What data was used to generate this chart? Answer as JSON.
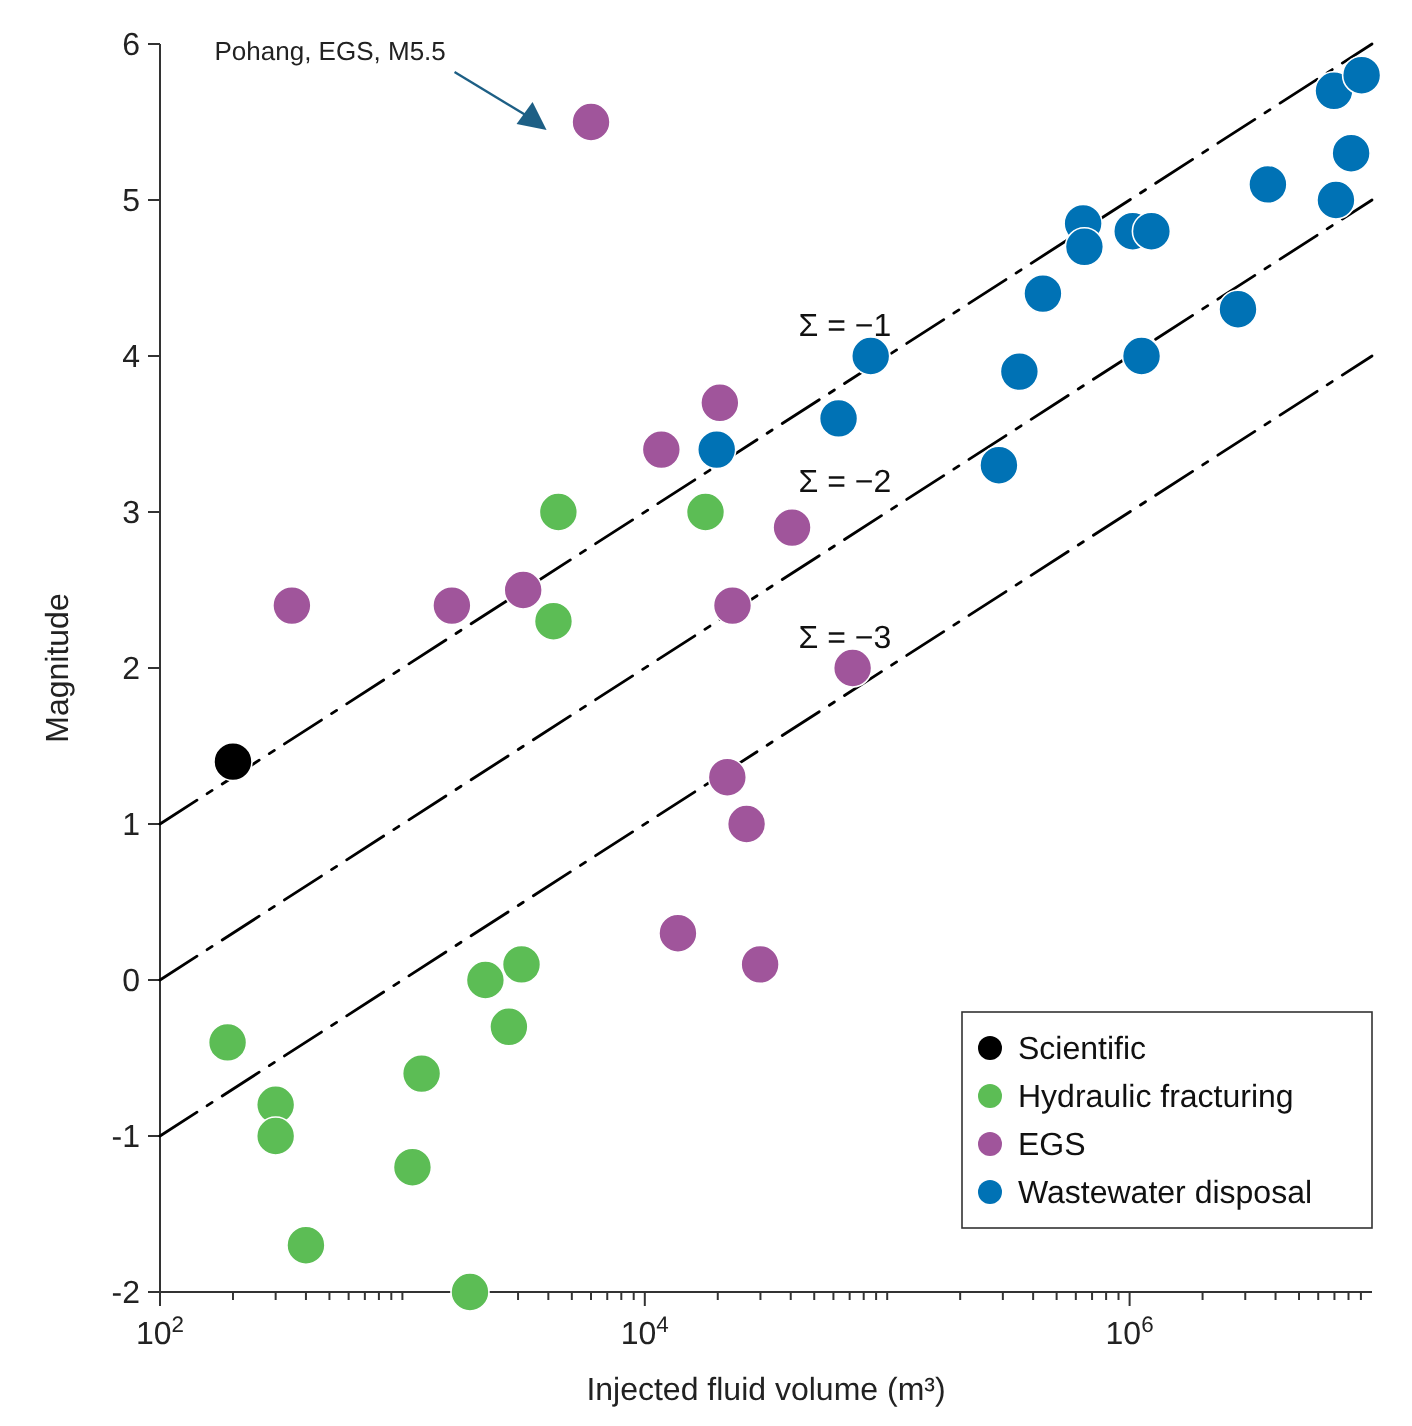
{
  "chart_data": {
    "type": "scatter",
    "xlabel": "Injected fluid volume (m³)",
    "ylabel": "Magnitude",
    "log": "x",
    "xlim": [
      100,
      10000000
    ],
    "ylim": [
      -2,
      6
    ],
    "xticks": [
      {
        "value": 100,
        "label": "10$^{2}$"
      },
      {
        "value": 200,
        "label": null
      },
      {
        "value": 300,
        "label": null
      },
      {
        "value": 400,
        "label": null
      },
      {
        "value": 500,
        "label": null
      },
      {
        "value": 600,
        "label": null
      },
      {
        "value": 700,
        "label": null
      },
      {
        "value": 800,
        "label": null
      },
      {
        "value": 900,
        "label": null
      },
      {
        "value": 1000,
        "label": null
      },
      {
        "value": 2000,
        "label": null
      },
      {
        "value": 3000,
        "label": null
      },
      {
        "value": 4000,
        "label": null
      },
      {
        "value": 5000,
        "label": null
      },
      {
        "value": 6000,
        "label": null
      },
      {
        "value": 7000,
        "label": null
      },
      {
        "value": 8000,
        "label": null
      },
      {
        "value": 9000,
        "label": null
      },
      {
        "value": 10000,
        "label": "10$^{4}$"
      },
      {
        "value": 20000,
        "label": null
      },
      {
        "value": 30000,
        "label": null
      },
      {
        "value": 40000,
        "label": null
      },
      {
        "value": 50000,
        "label": null
      },
      {
        "value": 60000,
        "label": null
      },
      {
        "value": 70000,
        "label": null
      },
      {
        "value": 80000,
        "label": null
      },
      {
        "value": 90000,
        "label": null
      },
      {
        "value": 100000,
        "label": null
      },
      {
        "value": 200000,
        "label": null
      },
      {
        "value": 300000,
        "label": null
      },
      {
        "value": 400000,
        "label": null
      },
      {
        "value": 500000,
        "label": null
      },
      {
        "value": 600000,
        "label": null
      },
      {
        "value": 700000,
        "label": null
      },
      {
        "value": 800000,
        "label": null
      },
      {
        "value": 900000,
        "label": null
      },
      {
        "value": 1000000,
        "label": "10$^{6}$"
      },
      {
        "value": 2000000,
        "label": null
      },
      {
        "value": 3000000,
        "label": null
      },
      {
        "value": 4000000,
        "label": null
      },
      {
        "value": 5000000,
        "label": null
      },
      {
        "value": 6000000,
        "label": null
      },
      {
        "value": 7000000,
        "label": null
      },
      {
        "value": 8000000,
        "label": null
      },
      {
        "value": 9000000,
        "label": null
      }
    ],
    "yticks": [
      -2,
      -1,
      0,
      1,
      2,
      3,
      4,
      5,
      6
    ],
    "grid": false,
    "legend": "bottom right",
    "marker": "circle",
    "series": [
      {
        "type": "line",
        "name": "Σ = −1",
        "color": "#000000",
        "line_style": "dashed",
        "marker": "none",
        "x": [
          100,
          10000000
        ],
        "values": [
          1,
          6
        ]
      },
      {
        "type": "line",
        "name": "Σ = −2",
        "color": "#000000",
        "line_style": "dashed",
        "marker": "none",
        "x": [
          100,
          10000000
        ],
        "values": [
          0,
          5
        ]
      },
      {
        "type": "line",
        "name": "Σ = −3",
        "color": "#000000",
        "line_style": "dashed",
        "marker": "none",
        "x": [
          100,
          10000000
        ],
        "values": [
          -1,
          4
        ]
      },
      {
        "name": "Scientific",
        "color": "#000000",
        "x": [
          200
        ],
        "values": [
          1.4
        ]
      },
      {
        "name": "Hydraulic fracturing",
        "color": "#5cbd55",
        "x": [
          190,
          300,
          300,
          400,
          1200,
          1100,
          1900,
          2200,
          2750,
          3100,
          4400,
          4200,
          17800
        ],
        "values": [
          -0.4,
          -0.8,
          -1.0,
          -1.7,
          -0.6,
          -1.2,
          -2.0,
          0,
          -0.3,
          0.1,
          3.0,
          2.3,
          3.0
        ]
      },
      {
        "name": "EGS",
        "color": "#a0559b",
        "x": [
          6000,
          350,
          1600,
          3150,
          11700,
          20400,
          23000,
          40500,
          72000,
          21900,
          26300,
          13700,
          29900
        ],
        "values": [
          5.5,
          2.4,
          2.4,
          2.5,
          3.4,
          3.7,
          2.4,
          2.9,
          2.0,
          1.3,
          1.0,
          0.3,
          0.1
        ]
      },
      {
        "name": "Wastewater disposal",
        "color": "#0072b5",
        "x": [
          19800,
          63000,
          85500,
          351000,
          289000,
          439000,
          643000,
          651000,
          1030000,
          1230000,
          1120000,
          2800000,
          3720000,
          6970000,
          9060000,
          8200000,
          7100000
        ],
        "values": [
          3.4,
          3.6,
          4.0,
          3.9,
          3.3,
          4.4,
          4.85,
          4.7,
          4.8,
          4.8,
          4.0,
          4.3,
          5.1,
          5.7,
          5.8,
          5.3,
          5.0
        ]
      }
    ],
    "annotations": [
      "Pohang, EGS, M5.5"
    ]
  }
}
